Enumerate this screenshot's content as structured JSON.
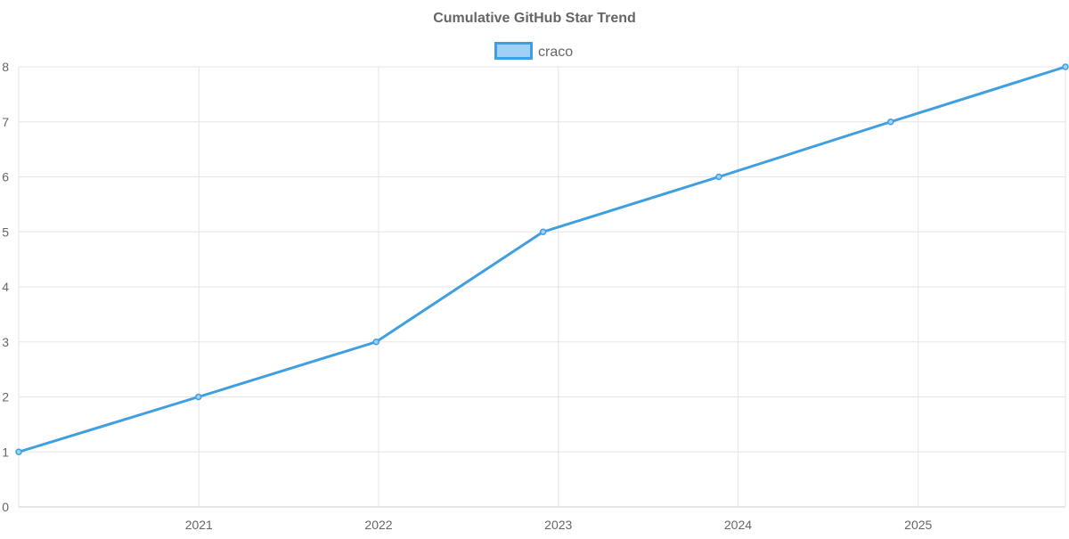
{
  "chart_data": {
    "type": "line",
    "title": "Cumulative GitHub Star Trend",
    "xlabel": "",
    "ylabel": "",
    "x": [
      "2020-01-01",
      "2020-12-31",
      "2021-12-27",
      "2022-12-01",
      "2023-11-23",
      "2024-11-06",
      "2025-10-27"
    ],
    "x_ticks": [
      "2021",
      "2022",
      "2023",
      "2024",
      "2025"
    ],
    "xlim": [
      "2020-01-01",
      "2025-10-27"
    ],
    "y_ticks": [
      0,
      1,
      2,
      3,
      4,
      5,
      6,
      7,
      8
    ],
    "ylim": [
      0,
      8
    ],
    "grid": true,
    "legend_position": "top-center",
    "series": [
      {
        "name": "craco",
        "values": [
          1,
          2,
          3,
          5,
          6,
          7,
          8
        ],
        "color": "#3f9fe0",
        "fill": "#9fd0f5"
      }
    ]
  }
}
